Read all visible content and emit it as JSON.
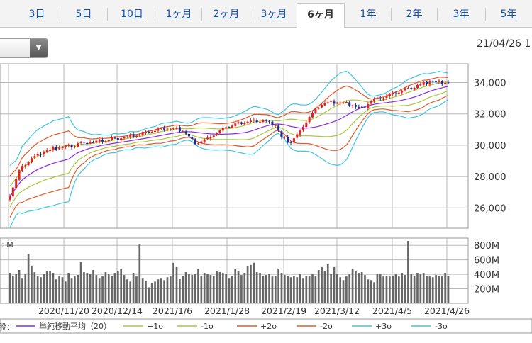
{
  "tabs": [
    {
      "label": "3日",
      "active": false
    },
    {
      "label": "5日",
      "active": false
    },
    {
      "label": "10日",
      "active": false
    },
    {
      "label": "1ヶ月",
      "active": false
    },
    {
      "label": "2ヶ月",
      "active": false
    },
    {
      "label": "3ヶ月",
      "active": false
    },
    {
      "label": "6ヶ月",
      "active": true
    },
    {
      "label": "1年",
      "active": false
    },
    {
      "label": "2年",
      "active": false
    },
    {
      "label": "3年",
      "active": false
    },
    {
      "label": "5年",
      "active": false
    }
  ],
  "timestamp": "21/04/26 1",
  "dropdown": {
    "icon": "triangle-down-icon"
  },
  "colors": {
    "up": "#dd2222",
    "down": "#1e2a8a",
    "sma": "#8a2be2",
    "s1": "#a8c83a",
    "s2": "#e05a2a",
    "s3": "#3ec6e0",
    "volume": "#666666",
    "grid": "#b8b8b8"
  },
  "chart_data": [
    {
      "type": "candlestick",
      "ylim": [
        24700,
        35200
      ],
      "yticks": [
        "34,000",
        "32,000",
        "30,000",
        "28,000",
        "26,000"
      ],
      "ytick_values": [
        34000,
        32000,
        30000,
        28000,
        26000
      ],
      "xticks": [
        "2020/11/20",
        "2020/12/14",
        "2021/1/6",
        "2021/1/28",
        "2021/2/19",
        "2021/3/12",
        "2021/4/5",
        "2021/4/26"
      ],
      "grid": true,
      "close_anchors": [
        [
          0,
          26800
        ],
        [
          3,
          28400
        ],
        [
          6,
          29000
        ],
        [
          10,
          29500
        ],
        [
          14,
          29800
        ],
        [
          20,
          30000
        ],
        [
          26,
          30200
        ],
        [
          34,
          30400
        ],
        [
          42,
          30700
        ],
        [
          48,
          31000
        ],
        [
          52,
          31100
        ],
        [
          56,
          31000
        ],
        [
          58,
          30500
        ],
        [
          60,
          30100
        ],
        [
          64,
          30400
        ],
        [
          70,
          31200
        ],
        [
          78,
          31500
        ],
        [
          82,
          31600
        ],
        [
          86,
          31300
        ],
        [
          88,
          30500
        ],
        [
          91,
          30200
        ],
        [
          94,
          30900
        ],
        [
          96,
          31500
        ],
        [
          100,
          32500
        ],
        [
          104,
          32800
        ],
        [
          110,
          32600
        ],
        [
          114,
          32400
        ],
        [
          118,
          32900
        ],
        [
          124,
          33300
        ],
        [
          130,
          33700
        ],
        [
          136,
          34100
        ],
        [
          140,
          34000
        ],
        [
          142,
          34000
        ]
      ]
    },
    {
      "type": "bar",
      "ylim": [
        0,
        900
      ],
      "yticks": [
        "800M",
        "600M",
        "400M",
        "200M"
      ],
      "ytick_values": [
        800,
        600,
        400,
        200
      ],
      "unit_label": ": M",
      "volumes": [
        420,
        380,
        410,
        460,
        350,
        400,
        680,
        520,
        430,
        380,
        360,
        410,
        440,
        450,
        420,
        330,
        380,
        360,
        300,
        420,
        350,
        370,
        390,
        570,
        430,
        420,
        410,
        460,
        390,
        350,
        380,
        430,
        400,
        380,
        420,
        450,
        470,
        390,
        330,
        300,
        420,
        370,
        810,
        350,
        310,
        220,
        280,
        300,
        330,
        350,
        320,
        360,
        380,
        560,
        500,
        340,
        380,
        430,
        410,
        390,
        400,
        470,
        370,
        420,
        410,
        390,
        380,
        440,
        430,
        420,
        410,
        350,
        380,
        470,
        440,
        390,
        420,
        510,
        530,
        560,
        430,
        420,
        380,
        390,
        410,
        370,
        380,
        480,
        420,
        390,
        380,
        360,
        380,
        360,
        410,
        350,
        380,
        370,
        400,
        380,
        460,
        500,
        440,
        540,
        410,
        500,
        400,
        360,
        320,
        370,
        410,
        470,
        450,
        420,
        430,
        390,
        330,
        320,
        290,
        410,
        400,
        370,
        380,
        370,
        380,
        400,
        370,
        420,
        390,
        860,
        410,
        380,
        420,
        400,
        420,
        380,
        370,
        360,
        390,
        380,
        370,
        420,
        380
      ]
    }
  ],
  "legend": {
    "prefix": "股：",
    "items": [
      {
        "label": "単純移動平均（20）",
        "color_key": "sma"
      },
      {
        "label": "+1σ",
        "color_key": "s1"
      },
      {
        "label": "-1σ",
        "color_key": "s1"
      },
      {
        "label": "+2σ",
        "color_key": "s2"
      },
      {
        "label": "-2σ",
        "color_key": "s2"
      },
      {
        "label": "+3σ",
        "color_key": "s3"
      },
      {
        "label": "-3σ",
        "color_key": "s3"
      }
    ]
  }
}
